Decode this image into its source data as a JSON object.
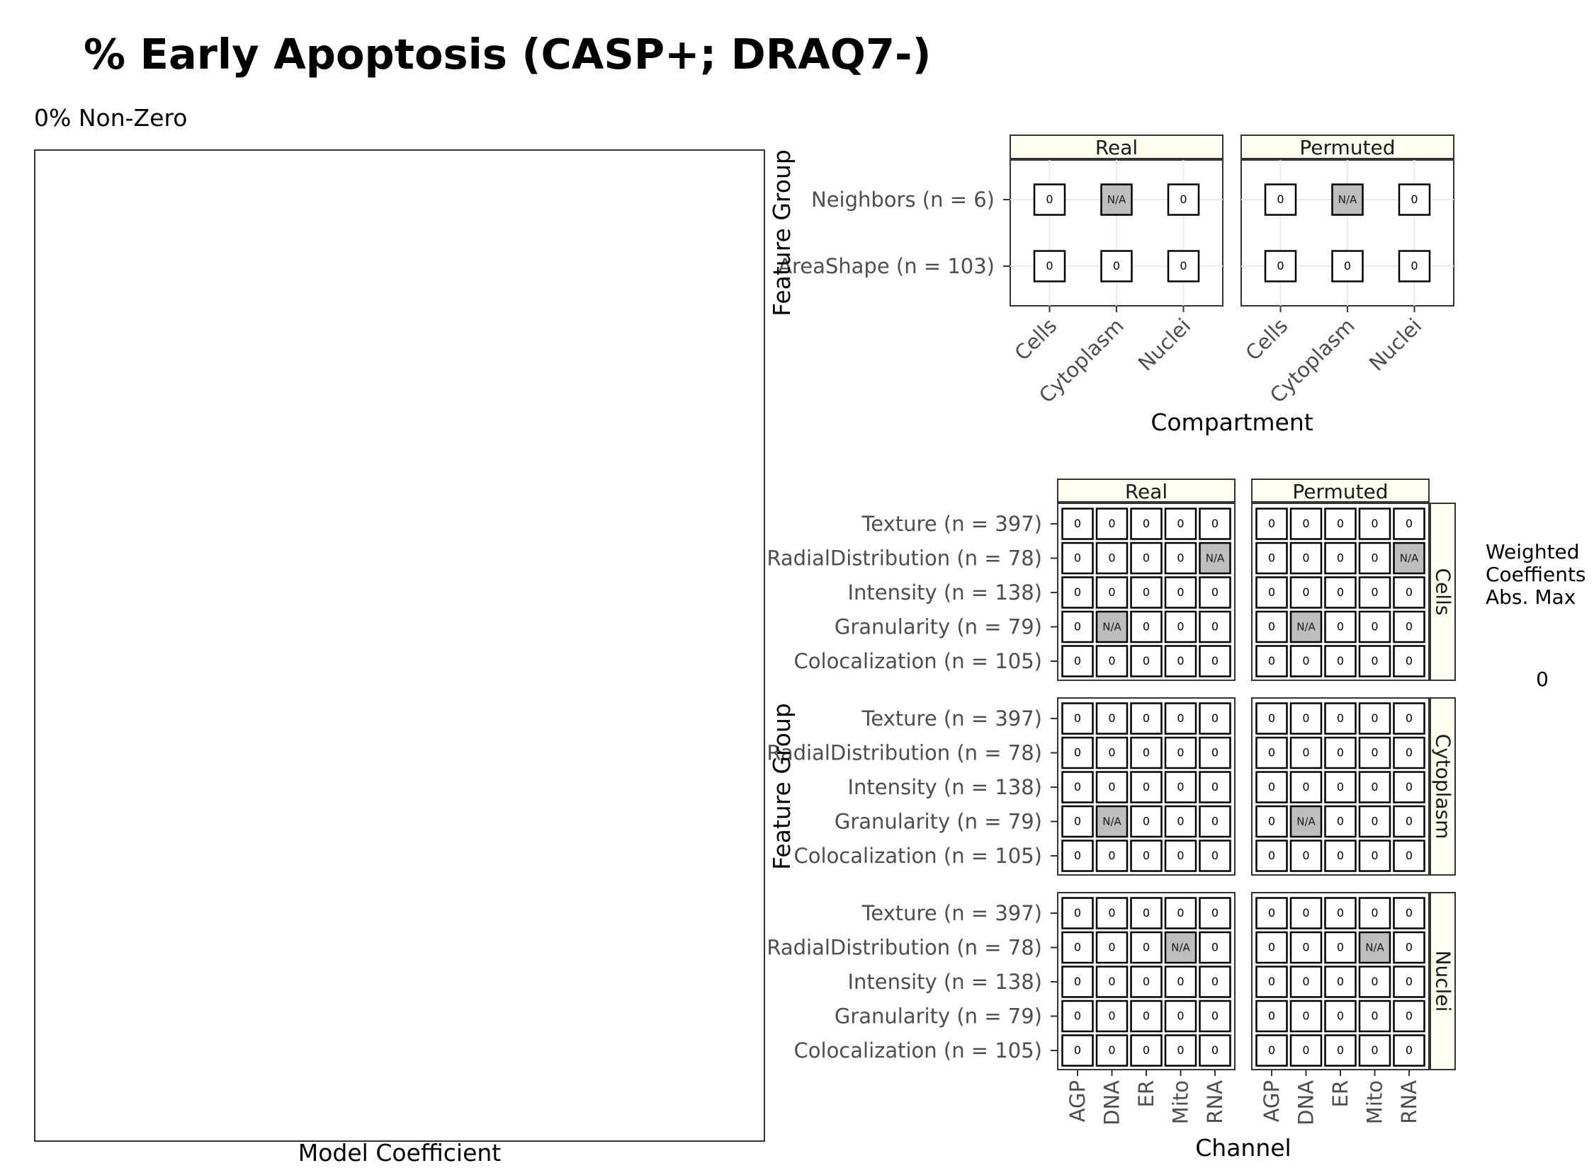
{
  "title": "% Early Apoptosis (CASP+; DRAQ7-)",
  "subtitle": "0% Non-Zero",
  "left_panel": {
    "xlabel": "Model Coefficient"
  },
  "legend": {
    "title_lines": [
      "Weighted",
      "Coeffients",
      "Abs. Max"
    ],
    "value": "0"
  },
  "colors": {
    "strip_fill": "#ffffef",
    "na_fill": "#bebebe",
    "cell_fill": "#ffffff",
    "grid": "#ebebeb"
  },
  "chart_data": [
    {
      "type": "heatmap",
      "xlabel": "Compartment",
      "ylabel": "Feature Group",
      "facets": [
        "Real",
        "Permuted"
      ],
      "x": [
        "Cells",
        "Cytoplasm",
        "Nuclei"
      ],
      "y": [
        "Neighbors (n = 6)",
        "AreaShape (n = 103)"
      ],
      "values": {
        "Real": [
          [
            "0",
            "N/A",
            "0"
          ],
          [
            "0",
            "0",
            "0"
          ]
        ],
        "Permuted": [
          [
            "0",
            "N/A",
            "0"
          ],
          [
            "0",
            "0",
            "0"
          ]
        ]
      }
    },
    {
      "type": "heatmap",
      "xlabel": "Channel",
      "ylabel": "Feature Group",
      "facets": [
        "Real",
        "Permuted"
      ],
      "row_facets": [
        "Cells",
        "Cytoplasm",
        "Nuclei"
      ],
      "x": [
        "AGP",
        "DNA",
        "ER",
        "Mito",
        "RNA"
      ],
      "y": [
        "Texture (n = 397)",
        "RadialDistribution (n = 78)",
        "Intensity (n = 138)",
        "Granularity (n = 79)",
        "Colocalization (n = 105)"
      ],
      "values": {
        "Cells": {
          "Real": [
            [
              "0",
              "0",
              "0",
              "0",
              "0"
            ],
            [
              "0",
              "0",
              "0",
              "0",
              "N/A"
            ],
            [
              "0",
              "0",
              "0",
              "0",
              "0"
            ],
            [
              "0",
              "N/A",
              "0",
              "0",
              "0"
            ],
            [
              "0",
              "0",
              "0",
              "0",
              "0"
            ]
          ],
          "Permuted": [
            [
              "0",
              "0",
              "0",
              "0",
              "0"
            ],
            [
              "0",
              "0",
              "0",
              "0",
              "N/A"
            ],
            [
              "0",
              "0",
              "0",
              "0",
              "0"
            ],
            [
              "0",
              "N/A",
              "0",
              "0",
              "0"
            ],
            [
              "0",
              "0",
              "0",
              "0",
              "0"
            ]
          ]
        },
        "Cytoplasm": {
          "Real": [
            [
              "0",
              "0",
              "0",
              "0",
              "0"
            ],
            [
              "0",
              "0",
              "0",
              "0",
              "0"
            ],
            [
              "0",
              "0",
              "0",
              "0",
              "0"
            ],
            [
              "0",
              "N/A",
              "0",
              "0",
              "0"
            ],
            [
              "0",
              "0",
              "0",
              "0",
              "0"
            ]
          ],
          "Permuted": [
            [
              "0",
              "0",
              "0",
              "0",
              "0"
            ],
            [
              "0",
              "0",
              "0",
              "0",
              "0"
            ],
            [
              "0",
              "0",
              "0",
              "0",
              "0"
            ],
            [
              "0",
              "N/A",
              "0",
              "0",
              "0"
            ],
            [
              "0",
              "0",
              "0",
              "0",
              "0"
            ]
          ]
        },
        "Nuclei": {
          "Real": [
            [
              "0",
              "0",
              "0",
              "0",
              "0"
            ],
            [
              "0",
              "0",
              "0",
              "N/A",
              "0"
            ],
            [
              "0",
              "0",
              "0",
              "0",
              "0"
            ],
            [
              "0",
              "0",
              "0",
              "0",
              "0"
            ],
            [
              "0",
              "0",
              "0",
              "0",
              "0"
            ]
          ],
          "Permuted": [
            [
              "0",
              "0",
              "0",
              "0",
              "0"
            ],
            [
              "0",
              "0",
              "0",
              "N/A",
              "0"
            ],
            [
              "0",
              "0",
              "0",
              "0",
              "0"
            ],
            [
              "0",
              "0",
              "0",
              "0",
              "0"
            ],
            [
              "0",
              "0",
              "0",
              "0",
              "0"
            ]
          ]
        }
      }
    }
  ]
}
